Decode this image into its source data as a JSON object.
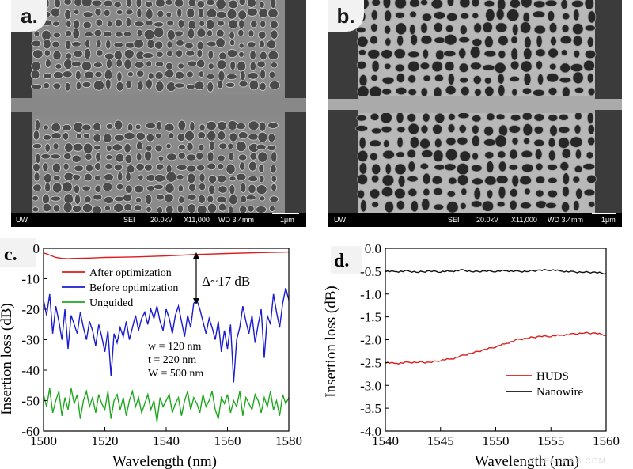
{
  "sem_a": {
    "letter": "a.",
    "info": {
      "left": "UW",
      "mode": "SEI",
      "kv": "20.0kV",
      "mag": "X11,000",
      "wd": "WD 3.4mm",
      "scale": "1μm"
    }
  },
  "sem_b": {
    "letter": "b.",
    "info": {
      "left": "UW",
      "mode": "SEI",
      "kv": "20.0kV",
      "mag": "X11,000",
      "wd": "WD 3.4mm",
      "scale": "1μm"
    }
  },
  "watermark": "SCIENCEAG.COM",
  "chart_data": [
    {
      "panel": "c.",
      "type": "line",
      "xlabel": "Wavelength (nm)",
      "ylabel": "Insertion loss (dB)",
      "xlim": [
        1500,
        1580
      ],
      "ylim": [
        -60,
        0
      ],
      "xticks": [
        1500,
        1520,
        1540,
        1560,
        1580
      ],
      "yticks": [
        0,
        -10,
        -20,
        -30,
        -40,
        -50,
        -60
      ],
      "legend_position": "top-left",
      "series": [
        {
          "name": "After optimization",
          "color": "#e01b1b",
          "x": [
            1500,
            1501,
            1502,
            1504,
            1506,
            1508,
            1510,
            1515,
            1520,
            1525,
            1530,
            1540,
            1550,
            1560,
            1570,
            1580
          ],
          "y": [
            -1.5,
            -1.8,
            -2.2,
            -3.0,
            -3.3,
            -3.4,
            -3.3,
            -3.2,
            -3.0,
            -2.9,
            -2.8,
            -2.5,
            -2.0,
            -1.7,
            -1.4,
            -1.2
          ]
        },
        {
          "name": "Before optimization",
          "color": "#1b1bd0",
          "x": [
            1500,
            1501,
            1502,
            1503,
            1504,
            1505,
            1506,
            1507,
            1508,
            1509,
            1510,
            1511,
            1512,
            1513,
            1514,
            1515,
            1516,
            1517,
            1518,
            1519,
            1520,
            1521,
            1522,
            1523,
            1524,
            1525,
            1526,
            1527,
            1528,
            1529,
            1530,
            1531,
            1532,
            1533,
            1534,
            1535,
            1536,
            1537,
            1538,
            1539,
            1540,
            1541,
            1542,
            1543,
            1544,
            1545,
            1546,
            1547,
            1548,
            1549,
            1550,
            1551,
            1552,
            1553,
            1554,
            1555,
            1556,
            1557,
            1558,
            1559,
            1560,
            1561,
            1562,
            1563,
            1564,
            1565,
            1566,
            1567,
            1568,
            1569,
            1570,
            1571,
            1572,
            1573,
            1574,
            1575,
            1576,
            1577,
            1578,
            1579,
            1580
          ],
          "y": [
            -17,
            -22,
            -15,
            -28,
            -19,
            -24,
            -30,
            -20,
            -33,
            -22,
            -25,
            -28,
            -21,
            -26,
            -30,
            -24,
            -27,
            -32,
            -25,
            -29,
            -34,
            -27,
            -42,
            -28,
            -31,
            -26,
            -29,
            -24,
            -30,
            -26,
            -22,
            -27,
            -23,
            -21,
            -25,
            -20,
            -23,
            -19,
            -24,
            -27,
            -20,
            -23,
            -28,
            -22,
            -19,
            -24,
            -29,
            -22,
            -26,
            -18,
            -17,
            -20,
            -24,
            -28,
            -23,
            -26,
            -30,
            -24,
            -34,
            -27,
            -33,
            -25,
            -44,
            -30,
            -26,
            -19,
            -24,
            -28,
            -22,
            -31,
            -25,
            -20,
            -36,
            -22,
            -25,
            -15,
            -21,
            -26,
            -18,
            -13,
            -17
          ]
        },
        {
          "name": "Unguided",
          "color": "#1fa81f",
          "x": [
            1500,
            1501,
            1502,
            1503,
            1504,
            1505,
            1506,
            1507,
            1508,
            1509,
            1510,
            1511,
            1512,
            1513,
            1514,
            1515,
            1516,
            1517,
            1518,
            1519,
            1520,
            1521,
            1522,
            1523,
            1524,
            1525,
            1526,
            1527,
            1528,
            1529,
            1530,
            1531,
            1532,
            1533,
            1534,
            1535,
            1536,
            1537,
            1538,
            1539,
            1540,
            1541,
            1542,
            1543,
            1544,
            1545,
            1546,
            1547,
            1548,
            1549,
            1550,
            1551,
            1552,
            1553,
            1554,
            1555,
            1556,
            1557,
            1558,
            1559,
            1560,
            1561,
            1562,
            1563,
            1564,
            1565,
            1566,
            1567,
            1568,
            1569,
            1570,
            1571,
            1572,
            1573,
            1574,
            1575,
            1576,
            1577,
            1578,
            1579,
            1580
          ],
          "y": [
            -48,
            -52,
            -46,
            -54,
            -50,
            -47,
            -55,
            -49,
            -53,
            -46,
            -51,
            -48,
            -56,
            -50,
            -47,
            -52,
            -49,
            -54,
            -48,
            -51,
            -53,
            -47,
            -56,
            -50,
            -48,
            -53,
            -49,
            -55,
            -50,
            -47,
            -52,
            -49,
            -54,
            -51,
            -48,
            -53,
            -50,
            -57,
            -49,
            -52,
            -50,
            -48,
            -54,
            -51,
            -49,
            -55,
            -50,
            -47,
            -53,
            -49,
            -51,
            -54,
            -48,
            -52,
            -50,
            -47,
            -53,
            -56,
            -49,
            -51,
            -48,
            -54,
            -50,
            -52,
            -47,
            -55,
            -49,
            -51,
            -53,
            -48,
            -50,
            -54,
            -49,
            -52,
            -47,
            -53,
            -50,
            -55,
            -48,
            -51,
            -49
          ]
        }
      ],
      "annotations": {
        "delta": "Δ~17 dB",
        "params": [
          "w  = 120 nm",
          "t   = 220 nm",
          "W = 500 nm"
        ]
      }
    },
    {
      "panel": "d.",
      "type": "line",
      "xlabel": "Wavelength (nm)",
      "ylabel": "Insertion loss (dB)",
      "xlim": [
        1540,
        1560
      ],
      "ylim": [
        -4.0,
        0.0
      ],
      "xticks": [
        1540,
        1545,
        1550,
        1555,
        1560
      ],
      "yticks": [
        "0.0",
        "-0.5",
        "-1.0",
        "-1.5",
        "-2.0",
        "-2.5",
        "-3.0",
        "-3.5",
        "-4.0"
      ],
      "legend_position": "bottom-right",
      "series": [
        {
          "name": "HUDS",
          "color": "#e01b1b",
          "x": [
            1540,
            1541,
            1542,
            1543,
            1544,
            1545,
            1546,
            1547,
            1548,
            1549,
            1550,
            1551,
            1552,
            1553,
            1554,
            1555,
            1556,
            1557,
            1558,
            1559,
            1560
          ],
          "y": [
            -2.5,
            -2.52,
            -2.5,
            -2.49,
            -2.5,
            -2.45,
            -2.42,
            -2.35,
            -2.28,
            -2.22,
            -2.15,
            -2.08,
            -2.0,
            -1.96,
            -1.93,
            -1.92,
            -1.9,
            -1.88,
            -1.85,
            -1.86,
            -1.9
          ]
        },
        {
          "name": "Nanowire",
          "color": "#111111",
          "x": [
            1540,
            1541,
            1542,
            1543,
            1544,
            1545,
            1546,
            1547,
            1548,
            1549,
            1550,
            1551,
            1552,
            1553,
            1554,
            1555,
            1556,
            1557,
            1558,
            1559,
            1560
          ],
          "y": [
            -0.5,
            -0.51,
            -0.5,
            -0.52,
            -0.5,
            -0.51,
            -0.5,
            -0.48,
            -0.51,
            -0.5,
            -0.5,
            -0.49,
            -0.51,
            -0.5,
            -0.48,
            -0.47,
            -0.5,
            -0.52,
            -0.52,
            -0.53,
            -0.55
          ]
        }
      ]
    }
  ]
}
